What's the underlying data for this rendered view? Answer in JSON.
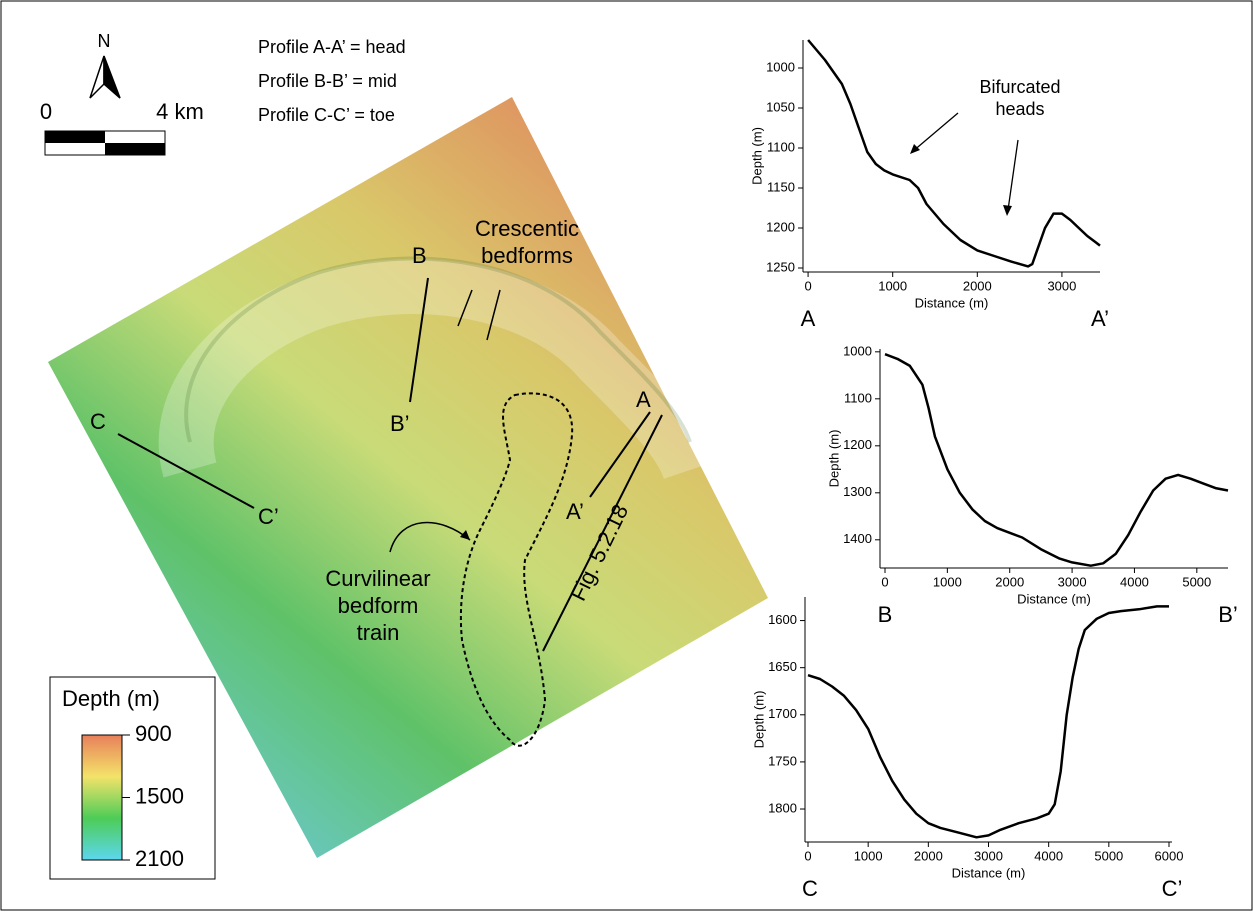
{
  "map": {
    "north": "N",
    "scale_labels": [
      "0",
      "4 km"
    ],
    "profile_legend": [
      "Profile A-A’ = head",
      "Profile B-B’ = mid",
      "Profile C-C’ = toe"
    ],
    "labels": {
      "crescentic": [
        "Crescentic",
        "bedforms"
      ],
      "curvilinear": [
        "Curvilinear",
        "bedform",
        "train"
      ],
      "fig_ref": "Fig. 5.2.18",
      "A": "A",
      "A2": "A’",
      "B": "B",
      "B2": "B’",
      "C": "C",
      "C2": "C’"
    },
    "colorbar": {
      "title": "Depth (m)",
      "lim": [
        900,
        2100
      ],
      "ticks": [
        900,
        1500,
        2100
      ],
      "colors": [
        "#e8805a",
        "#f3e36a",
        "#4dcc57",
        "#5cd7ef"
      ]
    }
  },
  "chart_data": [
    {
      "type": "line",
      "ylabel": "Depth (m)",
      "xlabel": "Distance (m)",
      "start_label": "A",
      "end_label": "A’",
      "annotation": [
        "Bifurcated",
        "heads"
      ],
      "xlim": [
        -60,
        3450
      ],
      "ylim": [
        1255,
        965
      ],
      "xticks": [
        0,
        1000,
        2000,
        3000
      ],
      "yticks": [
        1000,
        1050,
        1100,
        1150,
        1200,
        1250
      ],
      "x": [
        0,
        200,
        400,
        500,
        600,
        700,
        800,
        900,
        1000,
        1200,
        1300,
        1400,
        1600,
        1800,
        2000,
        2200,
        2400,
        2600,
        2650,
        2700,
        2800,
        2900,
        3000,
        3100,
        3200,
        3300,
        3400,
        3450
      ],
      "series": [
        {
          "color": "#000000",
          "values": [
            965,
            990,
            1020,
            1045,
            1075,
            1105,
            1120,
            1128,
            1133,
            1140,
            1150,
            1170,
            1195,
            1215,
            1228,
            1235,
            1242,
            1248,
            1245,
            1230,
            1200,
            1182,
            1182,
            1190,
            1200,
            1210,
            1218,
            1222
          ]
        }
      ]
    },
    {
      "type": "line",
      "ylabel": "Depth (m)",
      "xlabel": "Distance (m)",
      "start_label": "B",
      "end_label": "B’",
      "xlim": [
        -80,
        5500
      ],
      "ylim": [
        1460,
        994
      ],
      "xticks": [
        0,
        1000,
        2000,
        3000,
        4000,
        5000
      ],
      "yticks": [
        1000,
        1100,
        1200,
        1300,
        1400
      ],
      "x": [
        0,
        200,
        400,
        600,
        700,
        800,
        1000,
        1200,
        1400,
        1600,
        1800,
        2000,
        2200,
        2500,
        2800,
        3000,
        3300,
        3500,
        3700,
        3900,
        4100,
        4300,
        4500,
        4700,
        4900,
        5100,
        5300,
        5500
      ],
      "series": [
        {
          "color": "#000000",
          "values": [
            1005,
            1015,
            1030,
            1070,
            1120,
            1180,
            1250,
            1300,
            1335,
            1360,
            1375,
            1385,
            1395,
            1420,
            1440,
            1448,
            1455,
            1450,
            1430,
            1390,
            1340,
            1295,
            1270,
            1262,
            1270,
            1280,
            1290,
            1295
          ]
        }
      ]
    },
    {
      "type": "line",
      "ylabel": "Depth (m)",
      "xlabel": "Distance (m)",
      "start_label": "C",
      "end_label": "C’",
      "xlim": [
        -50,
        6050
      ],
      "ylim": [
        1835,
        1575
      ],
      "xticks": [
        0,
        1000,
        2000,
        3000,
        4000,
        5000,
        6000
      ],
      "yticks": [
        1600,
        1650,
        1700,
        1750,
        1800
      ],
      "x": [
        0,
        200,
        400,
        600,
        800,
        1000,
        1200,
        1400,
        1600,
        1800,
        2000,
        2200,
        2500,
        2800,
        3000,
        3200,
        3500,
        3800,
        4000,
        4100,
        4200,
        4300,
        4400,
        4500,
        4600,
        4800,
        5000,
        5200,
        5500,
        5800,
        6000
      ],
      "series": [
        {
          "color": "#000000",
          "values": [
            1658,
            1662,
            1670,
            1680,
            1695,
            1715,
            1745,
            1770,
            1790,
            1805,
            1815,
            1820,
            1825,
            1830,
            1828,
            1822,
            1815,
            1810,
            1805,
            1795,
            1760,
            1700,
            1660,
            1630,
            1610,
            1598,
            1592,
            1590,
            1588,
            1585,
            1585
          ]
        }
      ]
    }
  ]
}
